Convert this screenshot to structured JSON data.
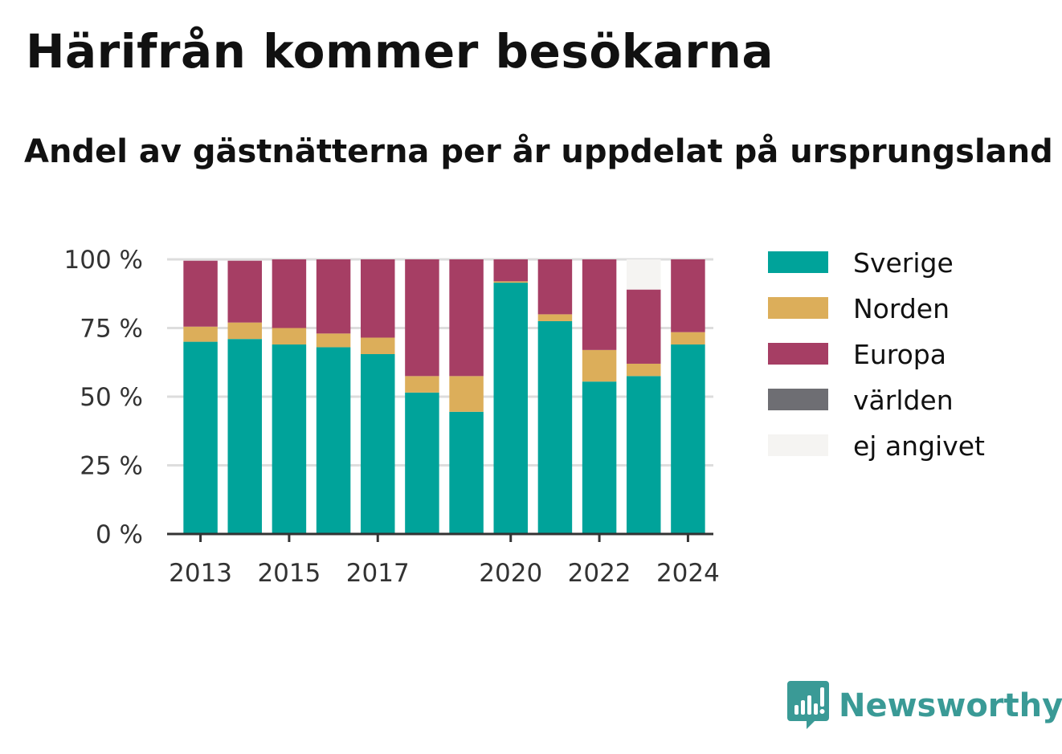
{
  "title": "Härifrån kommer besökarna",
  "subtitle": "Andel av gästnätterna per år uppdelat på ursprungsland",
  "brand": {
    "name": "Newsworthy",
    "icon": "newsworthy-logo-icon",
    "color": "#3a9a96"
  },
  "chart_data": {
    "type": "bar",
    "stacked": true,
    "categories": [
      "2013",
      "2014",
      "2015",
      "2016",
      "2017",
      "2018",
      "2019",
      "2020",
      "2021",
      "2022",
      "2023",
      "2024"
    ],
    "x_tick_labels": [
      "2013",
      "",
      "2015",
      "",
      "2017",
      "",
      "",
      "2020",
      "",
      "2022",
      "",
      "2024"
    ],
    "y_ticks": [
      0,
      25,
      50,
      75,
      100
    ],
    "y_tick_labels": [
      "0 %",
      "25 %",
      "50 %",
      "75 %",
      "100 %"
    ],
    "ylim": [
      0,
      100
    ],
    "grid": true,
    "legend_position": "right",
    "series": [
      {
        "name": "Sverige",
        "color": "#00a39a",
        "values": [
          70,
          71,
          69,
          68,
          65.5,
          51.5,
          44.5,
          91.5,
          77.5,
          55.5,
          57.5,
          69
        ]
      },
      {
        "name": "Norden",
        "color": "#dcae5a",
        "values": [
          5.5,
          6,
          6,
          5,
          6,
          6,
          13,
          0.5,
          2.5,
          11.5,
          4.5,
          4.5
        ]
      },
      {
        "name": "Europa",
        "color": "#a63e64",
        "values": [
          24,
          22.5,
          25,
          27,
          28.5,
          42.5,
          42.5,
          8,
          20,
          33,
          27,
          26.5
        ]
      },
      {
        "name": "världen",
        "color": "#6e6e73",
        "values": [
          0,
          0,
          0,
          0,
          0,
          0,
          0,
          0,
          0,
          0,
          0,
          0
        ]
      },
      {
        "name": "ej angivet",
        "color": "#f5f4f2",
        "values": [
          0,
          0,
          0,
          0,
          0,
          0,
          0,
          0,
          0,
          0,
          11,
          0
        ]
      }
    ]
  }
}
